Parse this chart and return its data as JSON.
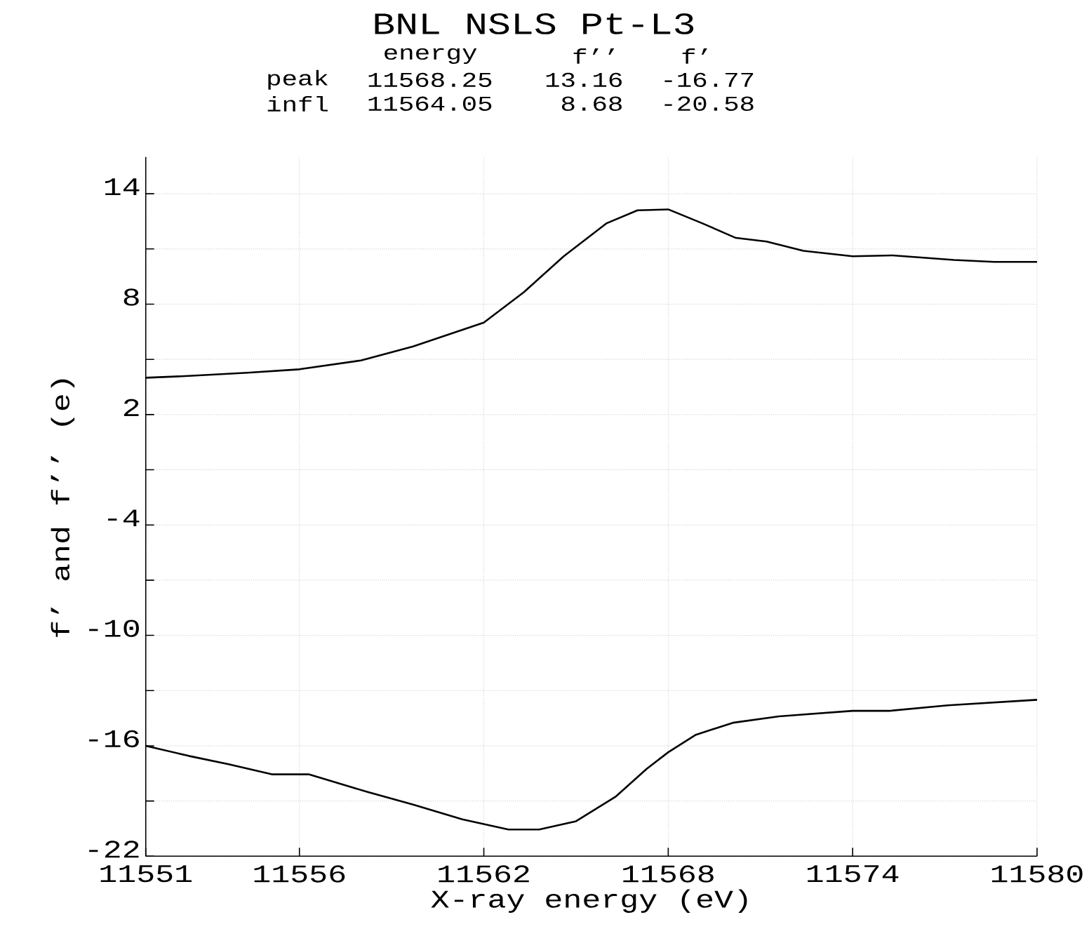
{
  "chart_data": {
    "type": "line",
    "title": "BNL NSLS Pt-L3",
    "annotations": [
      "energy",
      "f’’",
      "f’",
      "peak",
      "11568.25",
      "13.16",
      "-16.77",
      "infl",
      "11564.05",
      "8.68",
      "-20.58"
    ],
    "xlabel": "X-ray energy (eV)",
    "ylabel": "f’ and f’’ (e)",
    "xlim": [
      11551,
      11580
    ],
    "ylim": [
      -22,
      16
    ],
    "xticks": [
      11551,
      11556,
      11562,
      11568,
      11574,
      11580
    ],
    "yticks": [
      -22,
      {
        "value": -19,
        "label": null
      },
      -16,
      {
        "value": -13,
        "label": null
      },
      -10,
      {
        "value": -7,
        "label": null
      },
      -4,
      {
        "value": -1,
        "label": null
      },
      2,
      {
        "value": 5,
        "label": null
      },
      8,
      {
        "value": 11,
        "label": null
      },
      14
    ],
    "grid": true,
    "series": [
      {
        "color": "#000000",
        "x": [
          11551,
          11552.4,
          11554.3,
          11556,
          11558,
          11559.7,
          11562,
          11563.3,
          11564.6,
          11566,
          11567,
          11568,
          11569.1,
          11570.2,
          11571.2,
          11572.4,
          11574,
          11575.3,
          11577.3,
          11578.6,
          11580
        ],
        "values": [
          4.0,
          4.1,
          4.27,
          4.46,
          4.94,
          5.7,
          7.0,
          8.65,
          10.6,
          12.4,
          13.1,
          13.15,
          12.4,
          11.6,
          11.4,
          10.9,
          10.6,
          10.65,
          10.4,
          10.3,
          10.3
        ]
      },
      {
        "color": "#000000",
        "x": [
          11551,
          11552.4,
          11553.7,
          11555.1,
          11556.3,
          11558.2,
          11559.7,
          11561.3,
          11562.8,
          11563.8,
          11565,
          11566.3,
          11567.3,
          11568,
          11568.9,
          11570.1,
          11571.6,
          11574,
          11575.2,
          11577.1,
          11580
        ],
        "values": [
          -16.0,
          -16.55,
          -17.0,
          -17.55,
          -17.55,
          -18.5,
          -19.2,
          -20.0,
          -20.55,
          -20.55,
          -20.1,
          -18.75,
          -17.25,
          -16.35,
          -15.4,
          -14.75,
          -14.4,
          -14.1,
          -14.1,
          -13.8,
          -13.5
        ]
      }
    ]
  }
}
